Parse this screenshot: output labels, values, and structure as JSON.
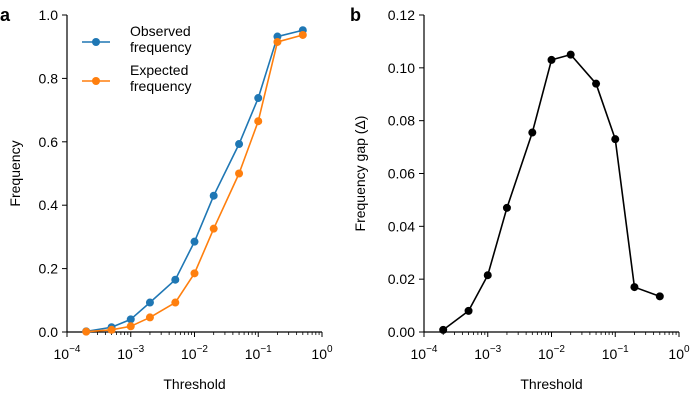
{
  "chart_data": [
    {
      "panel": "a",
      "type": "line",
      "title": "",
      "xlabel": "Threshold",
      "ylabel": "Frequency",
      "xscale": "log",
      "xlim": [
        0.0001,
        1
      ],
      "ylim": [
        0,
        1
      ],
      "x_ticks": [
        0.0001,
        0.001,
        0.01,
        0.1,
        1
      ],
      "x_tick_labels": [
        [
          "10",
          "−4"
        ],
        [
          "10",
          "−3"
        ],
        [
          "10",
          "−2"
        ],
        [
          "10",
          "−1"
        ],
        [
          "10",
          "0"
        ]
      ],
      "y_ticks": [
        0,
        0.2,
        0.4,
        0.6,
        0.8,
        1.0
      ],
      "y_tick_labels": [
        "0.0",
        "0.2",
        "0.4",
        "0.6",
        "0.8",
        "1.0"
      ],
      "grid": false,
      "legend_position": "top-left",
      "x": [
        0.0002,
        0.0005,
        0.001,
        0.002,
        0.005,
        0.01,
        0.02,
        0.05,
        0.1,
        0.2,
        0.5
      ],
      "series": [
        {
          "name": "Observed frequency",
          "legend_lines": [
            "Observed",
            "frequency"
          ],
          "color": "#1f77b4",
          "values": [
            0.002,
            0.015,
            0.04,
            0.093,
            0.165,
            0.285,
            0.43,
            0.593,
            0.738,
            0.932,
            0.952
          ]
        },
        {
          "name": "Expected frequency",
          "legend_lines": [
            "Expected",
            "frequency"
          ],
          "color": "#ff7f0e",
          "values": [
            0.001,
            0.007,
            0.018,
            0.046,
            0.093,
            0.185,
            0.326,
            0.5,
            0.665,
            0.915,
            0.937
          ]
        }
      ]
    },
    {
      "panel": "b",
      "type": "line",
      "title": "",
      "xlabel": "Threshold",
      "ylabel": "Frequency gap (Δ)",
      "xscale": "log",
      "xlim": [
        0.0001,
        1
      ],
      "ylim": [
        0,
        0.12
      ],
      "x_ticks": [
        0.0001,
        0.001,
        0.01,
        0.1,
        1
      ],
      "x_tick_labels": [
        [
          "10",
          "−4"
        ],
        [
          "10",
          "−3"
        ],
        [
          "10",
          "−2"
        ],
        [
          "10",
          "−1"
        ],
        [
          "10",
          "0"
        ]
      ],
      "y_ticks": [
        0,
        0.02,
        0.04,
        0.06,
        0.08,
        0.1,
        0.12
      ],
      "y_tick_labels": [
        "0.00",
        "0.02",
        "0.04",
        "0.06",
        "0.08",
        "0.10",
        "0.12"
      ],
      "grid": false,
      "x": [
        0.0002,
        0.0005,
        0.001,
        0.002,
        0.005,
        0.01,
        0.02,
        0.05,
        0.1,
        0.2,
        0.5
      ],
      "series": [
        {
          "color": "#000000",
          "values": [
            0.0008,
            0.008,
            0.0215,
            0.047,
            0.0755,
            0.103,
            0.105,
            0.094,
            0.073,
            0.017,
            0.0135
          ]
        }
      ]
    }
  ]
}
